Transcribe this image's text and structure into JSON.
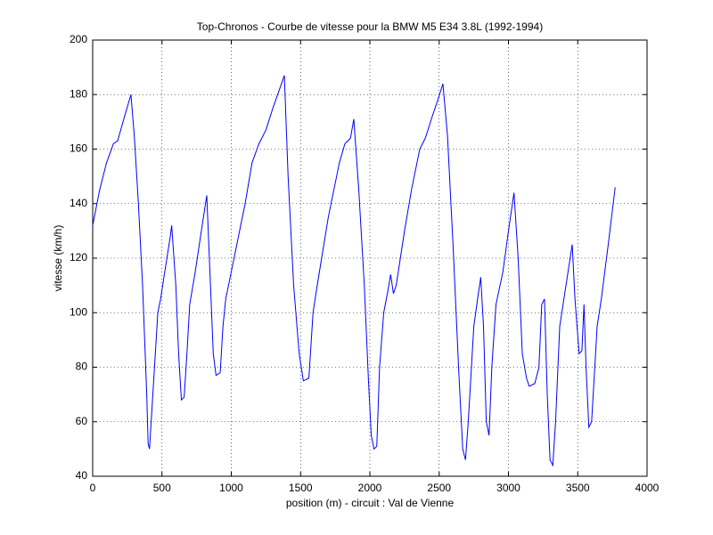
{
  "chart_data": {
    "type": "line",
    "title": "Top-Chronos - Courbe de vitesse pour la BMW M5 E34 3.8L (1992-1994)",
    "xlabel": "position (m) - circuit : Val de Vienne",
    "ylabel": "vitesse (km/h)",
    "color": "#0000ff",
    "grid": true,
    "xlim": [
      0,
      4000
    ],
    "ylim": [
      40,
      200
    ],
    "xticks": [
      0,
      500,
      1000,
      1500,
      2000,
      2500,
      3000,
      3500,
      4000
    ],
    "yticks": [
      40,
      60,
      80,
      100,
      120,
      140,
      160,
      180,
      200
    ],
    "x": [
      0,
      50,
      100,
      150,
      180,
      230,
      276,
      300,
      330,
      360,
      390,
      400,
      410,
      440,
      470,
      490,
      520,
      560,
      570,
      600,
      620,
      640,
      660,
      680,
      700,
      740,
      790,
      823,
      850,
      870,
      890,
      920,
      940,
      960,
      1000,
      1100,
      1150,
      1200,
      1250,
      1300,
      1383,
      1410,
      1450,
      1490,
      1520,
      1560,
      1590,
      1620,
      1700,
      1780,
      1820,
      1860,
      1884,
      1920,
      1960,
      1990,
      2010,
      2030,
      2050,
      2070,
      2100,
      2130,
      2150,
      2170,
      2190,
      2250,
      2300,
      2360,
      2400,
      2450,
      2490,
      2527,
      2560,
      2600,
      2640,
      2670,
      2690,
      2710,
      2750,
      2780,
      2800,
      2820,
      2840,
      2860,
      2880,
      2910,
      2960,
      3000,
      3040,
      3070,
      3100,
      3130,
      3150,
      3190,
      3220,
      3240,
      3260,
      3280,
      3300,
      3320,
      3340,
      3370,
      3400,
      3430,
      3460,
      3480,
      3510,
      3530,
      3545,
      3560,
      3580,
      3600,
      3640,
      3670,
      3720,
      3770
    ],
    "values": [
      132,
      145,
      155,
      162,
      163,
      172,
      180,
      165,
      140,
      110,
      70,
      52,
      50,
      75,
      100,
      105,
      115,
      128,
      132,
      110,
      85,
      68,
      69,
      85,
      103,
      115,
      132,
      143,
      110,
      85,
      77,
      78,
      95,
      105,
      115,
      140,
      155,
      162,
      167,
      175,
      187,
      150,
      110,
      85,
      75,
      76,
      100,
      110,
      135,
      155,
      162,
      164,
      171,
      145,
      110,
      75,
      55,
      50,
      51,
      80,
      100,
      108,
      114,
      107,
      110,
      130,
      145,
      160,
      164,
      172,
      178,
      184,
      165,
      125,
      80,
      50,
      46,
      60,
      95,
      106,
      113,
      95,
      60,
      55,
      80,
      103,
      115,
      130,
      144,
      120,
      85,
      76,
      73,
      74,
      80,
      103,
      105,
      70,
      46,
      44,
      60,
      95,
      105,
      115,
      125,
      105,
      85,
      86,
      103,
      80,
      58,
      60,
      95,
      105,
      125,
      146
    ]
  }
}
